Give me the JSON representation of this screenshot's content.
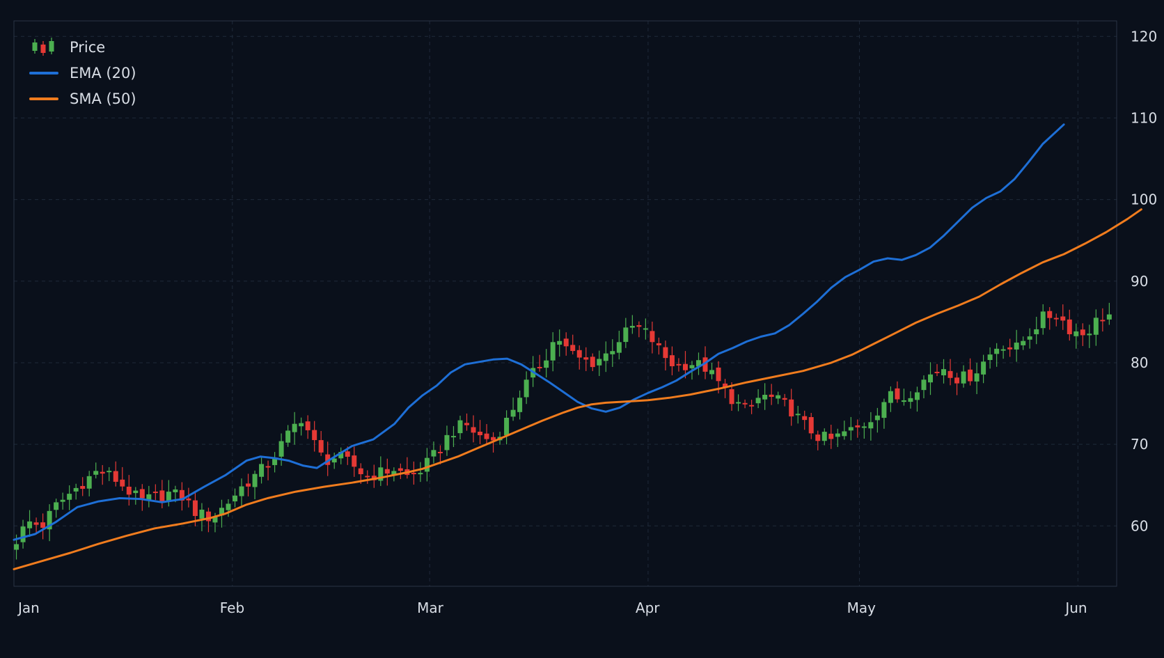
{
  "colors": {
    "background": "#0a101b",
    "grid": "#1f2a3a",
    "frame": "#2a3445",
    "text": "#d9dee6",
    "up": "#4caf50",
    "down": "#e53935",
    "ema": "#1e6fd6",
    "sma": "#f07c1e"
  },
  "chart_data": {
    "type": "candlestick",
    "title": "",
    "xlabel": "",
    "ylabel": "",
    "grid": true,
    "legend_position": "top-left",
    "y_axis_side": "right",
    "ylim": [
      50,
      120
    ],
    "yticks": [
      60,
      70,
      80,
      90,
      100,
      110,
      120
    ],
    "xticks": [
      "Jan",
      "Feb",
      "Mar",
      "Apr",
      "May",
      "Jun"
    ],
    "xtick_days": [
      0,
      31,
      59,
      90,
      120,
      151
    ],
    "x_end_day": 162,
    "legend": [
      {
        "label": "Price",
        "kind": "candle"
      },
      {
        "label": "EMA (20)",
        "kind": "line",
        "color": "#1e6fd6"
      },
      {
        "label": "SMA (50)",
        "kind": "line",
        "color": "#f07c1e"
      }
    ],
    "price_series": {
      "name": "Price",
      "close_points": [
        [
          0,
          57.8
        ],
        [
          2,
          60.5
        ],
        [
          4,
          60.0
        ],
        [
          6,
          62.5
        ],
        [
          8,
          64.0
        ],
        [
          10,
          65.5
        ],
        [
          12,
          66.8
        ],
        [
          14,
          66.0
        ],
        [
          16,
          64.5
        ],
        [
          18,
          63.0
        ],
        [
          20,
          63.5
        ],
        [
          22,
          64.0
        ],
        [
          24,
          63.5
        ],
        [
          26,
          61.5
        ],
        [
          28,
          61.0
        ],
        [
          30,
          62.5
        ],
        [
          32,
          64.5
        ],
        [
          34,
          66.0
        ],
        [
          36,
          67.5
        ],
        [
          38,
          70.0
        ],
        [
          40,
          72.5
        ],
        [
          41,
          73.5
        ],
        [
          42,
          71.0
        ],
        [
          44,
          68.0
        ],
        [
          46,
          68.5
        ],
        [
          48,
          67.5
        ],
        [
          50,
          66.0
        ],
        [
          52,
          66.5
        ],
        [
          54,
          67.0
        ],
        [
          56,
          66.0
        ],
        [
          58,
          67.0
        ],
        [
          60,
          69.0
        ],
        [
          62,
          71.5
        ],
        [
          64,
          72.5
        ],
        [
          66,
          71.0
        ],
        [
          68,
          70.5
        ],
        [
          70,
          73.0
        ],
        [
          72,
          76.5
        ],
        [
          74,
          79.0
        ],
        [
          76,
          81.5
        ],
        [
          77,
          83.5
        ],
        [
          78,
          82.0
        ],
        [
          80,
          80.5
        ],
        [
          82,
          80.0
        ],
        [
          84,
          81.0
        ],
        [
          86,
          83.0
        ],
        [
          88,
          84.5
        ],
        [
          90,
          83.5
        ],
        [
          92,
          81.0
        ],
        [
          94,
          79.5
        ],
        [
          96,
          80.0
        ],
        [
          98,
          79.5
        ],
        [
          100,
          77.5
        ],
        [
          102,
          75.5
        ],
        [
          104,
          74.0
        ],
        [
          106,
          76.0
        ],
        [
          108,
          75.5
        ],
        [
          110,
          74.5
        ],
        [
          112,
          72.5
        ],
        [
          114,
          71.0
        ],
        [
          116,
          70.5
        ],
        [
          118,
          71.5
        ],
        [
          120,
          72.0
        ],
        [
          122,
          73.5
        ],
        [
          124,
          76.0
        ],
        [
          126,
          75.5
        ],
        [
          128,
          77.0
        ],
        [
          130,
          78.5
        ],
        [
          132,
          79.5
        ],
        [
          134,
          78.0
        ],
        [
          136,
          78.5
        ],
        [
          138,
          80.5
        ],
        [
          140,
          82.5
        ],
        [
          142,
          81.5
        ],
        [
          144,
          83.5
        ],
        [
          146,
          85.5
        ],
        [
          148,
          86.0
        ],
        [
          150,
          84.0
        ],
        [
          152,
          83.5
        ],
        [
          154,
          85.5
        ],
        [
          156,
          86.0
        ],
        [
          158,
          85.0
        ],
        [
          160,
          86.0
        ],
        [
          162,
          88.0
        ]
      ]
    },
    "series": [
      {
        "name": "EMA (20)",
        "points": [
          [
            0,
            58.3
          ],
          [
            3,
            59.0
          ],
          [
            6,
            60.5
          ],
          [
            9,
            62.3
          ],
          [
            12,
            63.0
          ],
          [
            15,
            63.4
          ],
          [
            18,
            63.3
          ],
          [
            21,
            62.9
          ],
          [
            24,
            63.3
          ],
          [
            27,
            64.8
          ],
          [
            30,
            66.2
          ],
          [
            33,
            68.0
          ],
          [
            35,
            68.5
          ],
          [
            37,
            68.3
          ],
          [
            39,
            68.0
          ],
          [
            41,
            67.4
          ],
          [
            43,
            67.1
          ],
          [
            45,
            68.2
          ],
          [
            48,
            69.8
          ],
          [
            51,
            70.6
          ],
          [
            54,
            72.5
          ],
          [
            56,
            74.5
          ],
          [
            58,
            76.0
          ],
          [
            60,
            77.2
          ],
          [
            62,
            78.8
          ],
          [
            64,
            79.8
          ],
          [
            66,
            80.1
          ],
          [
            68,
            80.4
          ],
          [
            70,
            80.5
          ],
          [
            72,
            79.8
          ],
          [
            74,
            78.7
          ],
          [
            76,
            77.6
          ],
          [
            78,
            76.4
          ],
          [
            80,
            75.2
          ],
          [
            82,
            74.4
          ],
          [
            84,
            74.0
          ],
          [
            86,
            74.5
          ],
          [
            88,
            75.5
          ],
          [
            90,
            76.3
          ],
          [
            92,
            77.0
          ],
          [
            94,
            77.8
          ],
          [
            96,
            78.9
          ],
          [
            98,
            79.9
          ],
          [
            100,
            81.1
          ],
          [
            102,
            81.8
          ],
          [
            104,
            82.6
          ],
          [
            106,
            83.2
          ],
          [
            108,
            83.6
          ],
          [
            110,
            84.6
          ],
          [
            112,
            86.0
          ],
          [
            114,
            87.5
          ],
          [
            116,
            89.2
          ],
          [
            118,
            90.5
          ],
          [
            120,
            91.4
          ],
          [
            122,
            92.4
          ],
          [
            124,
            92.8
          ],
          [
            126,
            92.6
          ],
          [
            128,
            93.2
          ],
          [
            130,
            94.1
          ],
          [
            132,
            95.6
          ],
          [
            134,
            97.3
          ],
          [
            136,
            99.0
          ],
          [
            138,
            100.2
          ],
          [
            140,
            101.0
          ],
          [
            142,
            102.5
          ],
          [
            144,
            104.6
          ],
          [
            146,
            106.8
          ],
          [
            148,
            108.4
          ],
          [
            149,
            109.2
          ]
        ]
      },
      {
        "name": "SMA (50)",
        "points": [
          [
            0,
            54.7
          ],
          [
            4,
            55.7
          ],
          [
            8,
            56.7
          ],
          [
            12,
            57.8
          ],
          [
            16,
            58.8
          ],
          [
            20,
            59.7
          ],
          [
            24,
            60.3
          ],
          [
            28,
            61.0
          ],
          [
            30,
            61.5
          ],
          [
            33,
            62.6
          ],
          [
            36,
            63.4
          ],
          [
            40,
            64.2
          ],
          [
            44,
            64.8
          ],
          [
            48,
            65.3
          ],
          [
            52,
            65.9
          ],
          [
            56,
            66.6
          ],
          [
            58,
            67.0
          ],
          [
            60,
            67.6
          ],
          [
            63,
            68.5
          ],
          [
            66,
            69.6
          ],
          [
            69,
            70.7
          ],
          [
            72,
            71.8
          ],
          [
            75,
            72.9
          ],
          [
            78,
            73.9
          ],
          [
            80,
            74.5
          ],
          [
            82,
            74.9
          ],
          [
            84,
            75.1
          ],
          [
            86,
            75.2
          ],
          [
            88,
            75.3
          ],
          [
            90,
            75.4
          ],
          [
            93,
            75.7
          ],
          [
            96,
            76.1
          ],
          [
            100,
            76.8
          ],
          [
            104,
            77.6
          ],
          [
            108,
            78.3
          ],
          [
            112,
            79.0
          ],
          [
            116,
            80.0
          ],
          [
            119,
            81.0
          ],
          [
            122,
            82.3
          ],
          [
            125,
            83.6
          ],
          [
            128,
            84.9
          ],
          [
            131,
            86.0
          ],
          [
            134,
            87.0
          ],
          [
            137,
            88.1
          ],
          [
            140,
            89.6
          ],
          [
            143,
            91.0
          ],
          [
            146,
            92.3
          ],
          [
            149,
            93.3
          ],
          [
            152,
            94.6
          ],
          [
            155,
            96.0
          ],
          [
            158,
            97.6
          ],
          [
            160,
            98.8
          ]
        ]
      }
    ]
  }
}
